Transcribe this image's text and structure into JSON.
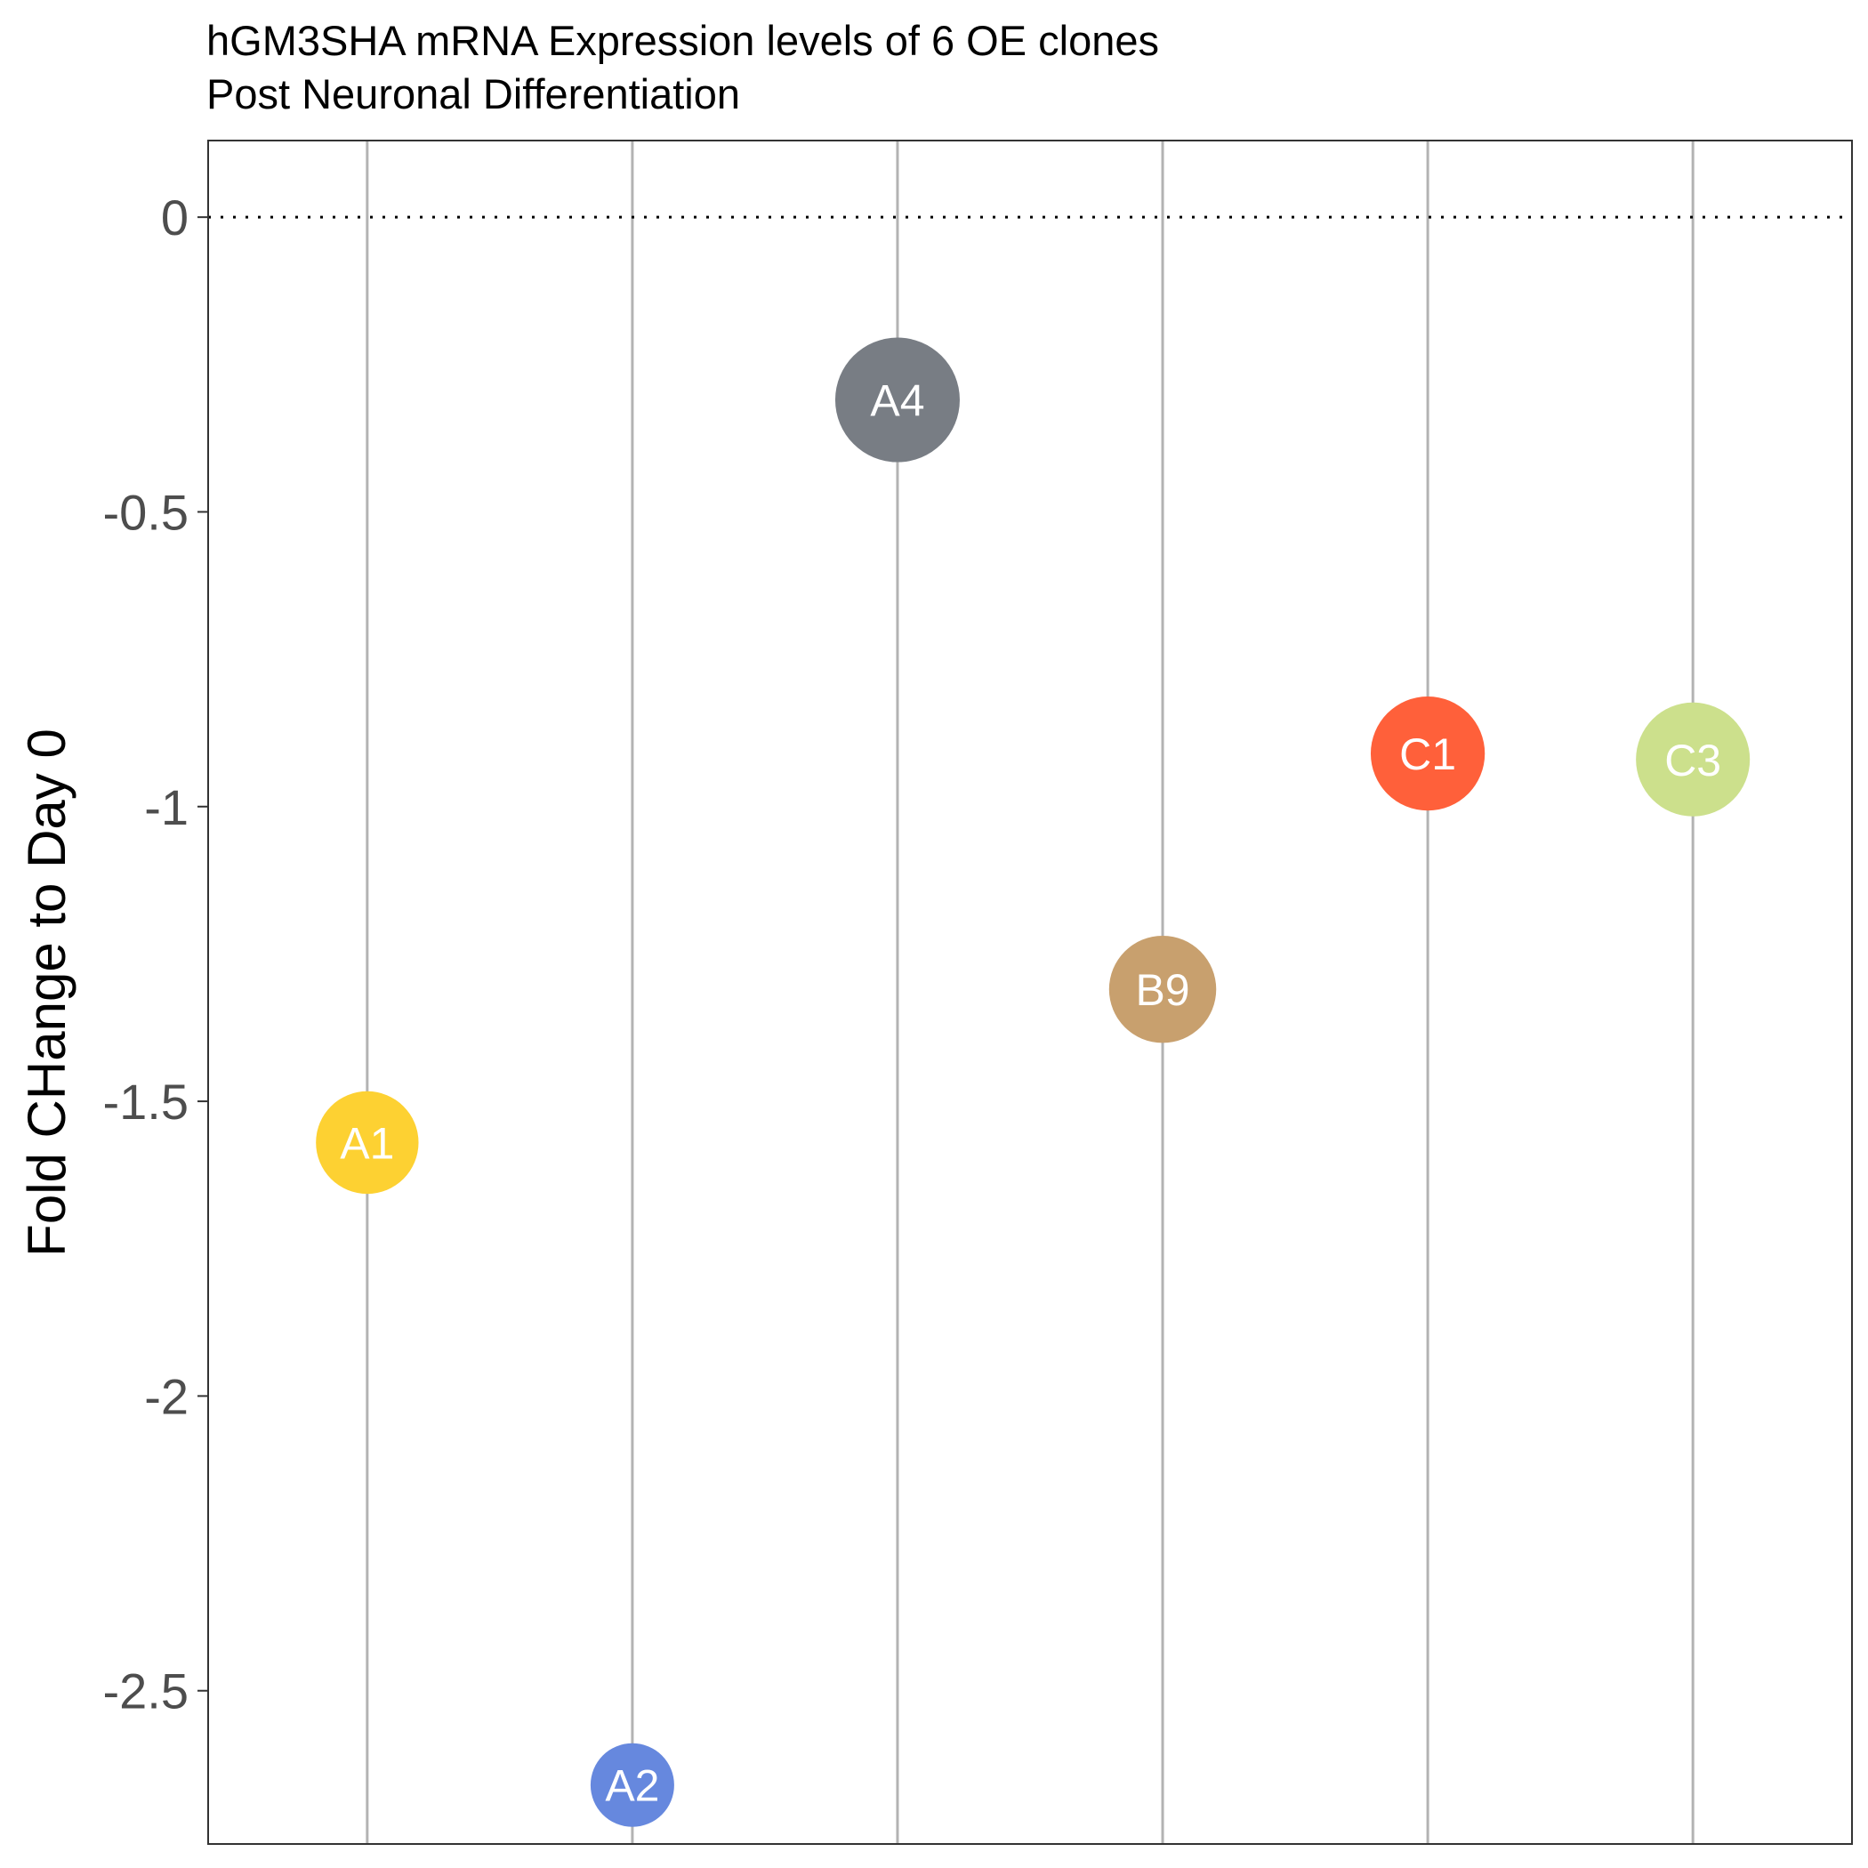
{
  "chart_data": {
    "type": "scatter",
    "title": "hGM3SHA mRNA Expression levels of 6 OE clones",
    "subtitle": "Post Neuronal Differentiation",
    "xlabel": "",
    "ylabel": "Fold CHange to Day 0",
    "ylim": [
      -2.76,
      0.13
    ],
    "yticks": [
      0,
      -0.5,
      -1,
      -1.5,
      -2,
      -2.5
    ],
    "ytick_labels": [
      "0",
      "-0.5",
      "-1",
      "-1.5",
      "-2",
      "-2.5"
    ],
    "reference_line": {
      "y": 0,
      "style": "dotted"
    },
    "grid": "vertical lines at each clone",
    "categories": [
      "A1",
      "A2",
      "A4",
      "B9",
      "C1",
      "C3"
    ],
    "points": [
      {
        "label": "A1",
        "y": -1.57,
        "color": "#FDD132"
      },
      {
        "label": "A2",
        "y": -2.66,
        "color": "#6688DE"
      },
      {
        "label": "A4",
        "y": -0.31,
        "color": "#787D84"
      },
      {
        "label": "B9",
        "y": -1.31,
        "color": "#C8A06E"
      },
      {
        "label": "C1",
        "y": -0.91,
        "color": "#FF603A"
      },
      {
        "label": "C3",
        "y": -0.92,
        "color": "#CCE08C"
      }
    ],
    "point_size_note": "point radius shrinks with lower fold change"
  }
}
